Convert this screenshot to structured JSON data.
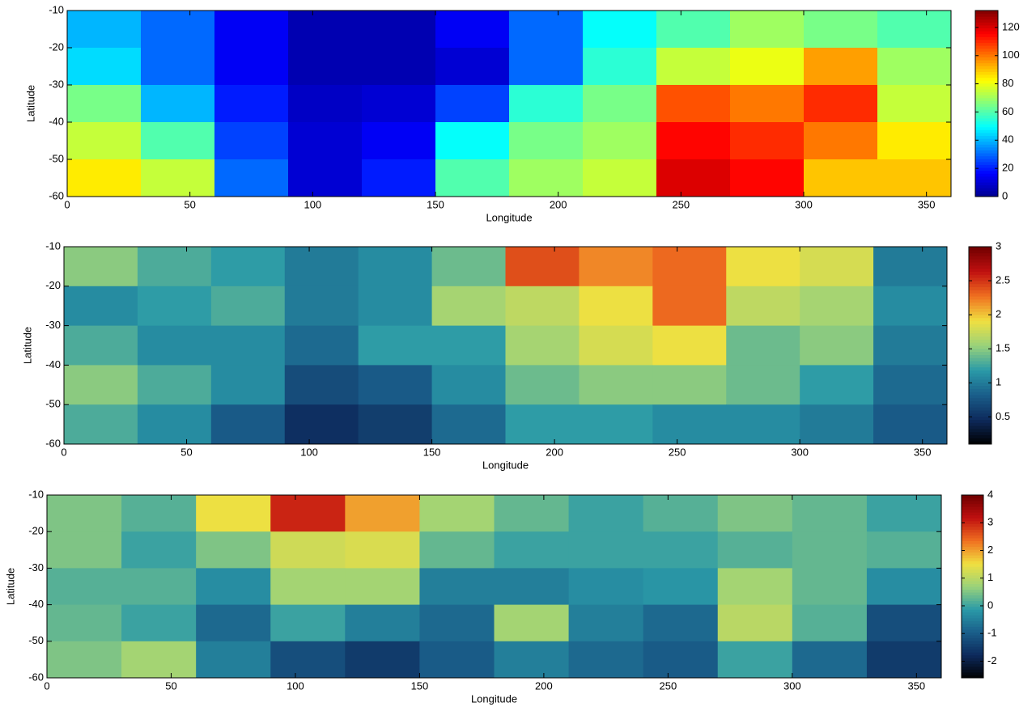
{
  "chart_data": [
    {
      "type": "heatmap",
      "xlabel": "Longitude",
      "ylabel": "Latitude",
      "xlim": [
        0,
        360
      ],
      "xticks": [
        0,
        50,
        100,
        150,
        200,
        250,
        300,
        350
      ],
      "ylim": [
        -60,
        -10
      ],
      "yticks": [
        -10,
        -20,
        -30,
        -40,
        -50,
        -60
      ],
      "xbins": [
        0,
        30,
        60,
        90,
        120,
        150,
        180,
        210,
        240,
        270,
        300,
        330,
        360
      ],
      "ybins": [
        -10,
        -20,
        -30,
        -40,
        -50,
        -60
      ],
      "z": [
        [
          40,
          30,
          15,
          5,
          5,
          15,
          30,
          50,
          60,
          70,
          65,
          60
        ],
        [
          45,
          30,
          15,
          5,
          5,
          10,
          30,
          55,
          75,
          80,
          95,
          70
        ],
        [
          65,
          40,
          20,
          8,
          10,
          25,
          55,
          65,
          105,
          100,
          110,
          75
        ],
        [
          75,
          60,
          25,
          10,
          15,
          50,
          65,
          70,
          115,
          110,
          100,
          85
        ],
        [
          85,
          75,
          30,
          10,
          20,
          60,
          70,
          75,
          120,
          115,
          90,
          90
        ]
      ],
      "zlim": [
        0,
        132
      ],
      "zticks": [
        0,
        20,
        40,
        60,
        80,
        100,
        120
      ],
      "colormap": [
        "#00008f",
        "#0000ff",
        "#0080ff",
        "#00ffff",
        "#80ff80",
        "#ffff00",
        "#ff8000",
        "#ff0000",
        "#800000"
      ]
    },
    {
      "type": "heatmap",
      "xlabel": "Longitude",
      "ylabel": "Latitude",
      "xlim": [
        0,
        360
      ],
      "xticks": [
        0,
        50,
        100,
        150,
        200,
        250,
        300,
        350
      ],
      "ylim": [
        -60,
        -10
      ],
      "yticks": [
        -10,
        -20,
        -30,
        -40,
        -50,
        -60
      ],
      "xbins": [
        0,
        30,
        60,
        90,
        120,
        150,
        180,
        210,
        240,
        270,
        300,
        330,
        360
      ],
      "ybins": [
        -10,
        -20,
        -30,
        -40,
        -50,
        -60
      ],
      "z": [
        [
          1.5,
          1.3,
          1.2,
          1.0,
          1.1,
          1.4,
          2.4,
          2.2,
          2.3,
          1.9,
          1.8,
          1.0
        ],
        [
          1.1,
          1.2,
          1.3,
          1.0,
          1.1,
          1.6,
          1.7,
          1.9,
          2.3,
          1.7,
          1.6,
          1.1
        ],
        [
          1.3,
          1.1,
          1.1,
          0.9,
          1.2,
          1.2,
          1.6,
          1.8,
          1.9,
          1.4,
          1.5,
          1.0
        ],
        [
          1.5,
          1.3,
          1.1,
          0.7,
          0.8,
          1.1,
          1.4,
          1.5,
          1.5,
          1.4,
          1.2,
          0.9
        ],
        [
          1.3,
          1.1,
          0.8,
          0.5,
          0.6,
          0.9,
          1.2,
          1.2,
          1.1,
          1.1,
          1.0,
          0.8
        ]
      ],
      "zlim": [
        0.1,
        3
      ],
      "zticks": [
        0.5,
        1,
        1.5,
        2,
        2.5,
        3
      ],
      "colormap": [
        "#000000",
        "#0d2a5c",
        "#1a5e8a",
        "#2a9aa8",
        "#9ad27a",
        "#f0e040",
        "#f07020",
        "#c01010",
        "#700000"
      ]
    },
    {
      "type": "heatmap",
      "xlabel": "Longitude",
      "ylabel": "Latitude",
      "xlim": [
        0,
        360
      ],
      "xticks": [
        0,
        50,
        100,
        150,
        200,
        250,
        300,
        350
      ],
      "ylim": [
        -60,
        -10
      ],
      "yticks": [
        -10,
        -20,
        -30,
        -40,
        -50,
        -60
      ],
      "xbins": [
        0,
        30,
        60,
        90,
        120,
        150,
        180,
        210,
        240,
        270,
        300,
        330,
        360
      ],
      "ybins": [
        -10,
        -20,
        -30,
        -40,
        -50,
        -60
      ],
      "z": [
        [
          0.5,
          0.2,
          1.5,
          3.0,
          2.0,
          0.8,
          0.3,
          0.0,
          0.2,
          0.5,
          0.3,
          0.0
        ],
        [
          0.5,
          0,
          0.5,
          1.2,
          1.3,
          0.3,
          0,
          0,
          0,
          0.2,
          0.3,
          0.2
        ],
        [
          0.2,
          0.2,
          -0.3,
          0.8,
          0.8,
          -0.5,
          -0.5,
          -0.3,
          -0.2,
          0.8,
          0.3,
          -0.3
        ],
        [
          0.3,
          0,
          -0.8,
          0,
          -0.5,
          -0.8,
          0.8,
          -0.5,
          -0.8,
          1.0,
          0.2,
          -1.2
        ],
        [
          0.5,
          0.8,
          -0.5,
          -1.2,
          -1.5,
          -1.0,
          -0.5,
          -0.8,
          -1.0,
          0.0,
          -0.8,
          -1.5
        ]
      ],
      "zlim": [
        -2.6,
        4
      ],
      "zticks": [
        -2,
        -1,
        0,
        1,
        2,
        3,
        4
      ],
      "colormap": [
        "#000000",
        "#0d2a5c",
        "#1a5e8a",
        "#2a9aa8",
        "#9ad27a",
        "#f0e040",
        "#f07020",
        "#c01010",
        "#700000"
      ]
    }
  ]
}
